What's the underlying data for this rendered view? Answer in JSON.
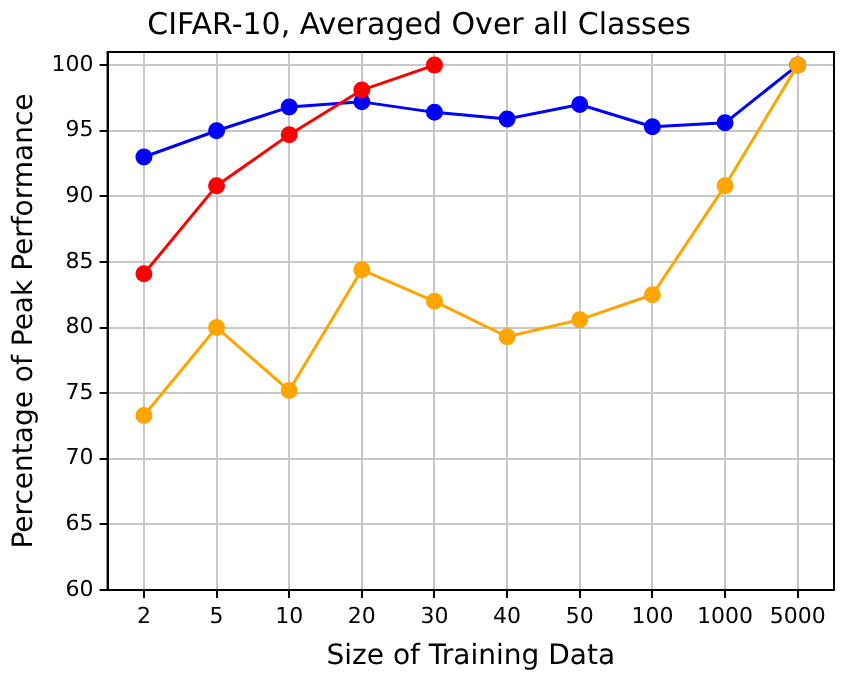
{
  "chart_data": {
    "type": "line",
    "title": "CIFAR-10, Averaged Over all Classes",
    "xlabel": "Size of Training Data",
    "ylabel": "Percentage of Peak Performance",
    "categories": [
      "2",
      "5",
      "10",
      "20",
      "30",
      "40",
      "50",
      "100",
      "1000",
      "5000"
    ],
    "series": [
      {
        "color": "#0000ff",
        "values": [
          93,
          95,
          96.8,
          97.2,
          96.4,
          95.9,
          97,
          95.3,
          95.6,
          100
        ]
      },
      {
        "color": "#ff0000",
        "values": [
          84.1,
          90.8,
          94.7,
          98.1,
          100,
          null,
          null,
          null,
          null,
          null
        ]
      },
      {
        "color": "#ffa500",
        "values": [
          73.3,
          80,
          75.2,
          84.4,
          82,
          79.3,
          80.6,
          82.5,
          90.8,
          100
        ]
      }
    ],
    "ylim": [
      60,
      101
    ],
    "yticks": [
      60,
      65,
      70,
      75,
      80,
      85,
      90,
      95,
      100
    ],
    "grid": true,
    "legend": false,
    "marker": "circle",
    "line_style": "solid"
  }
}
